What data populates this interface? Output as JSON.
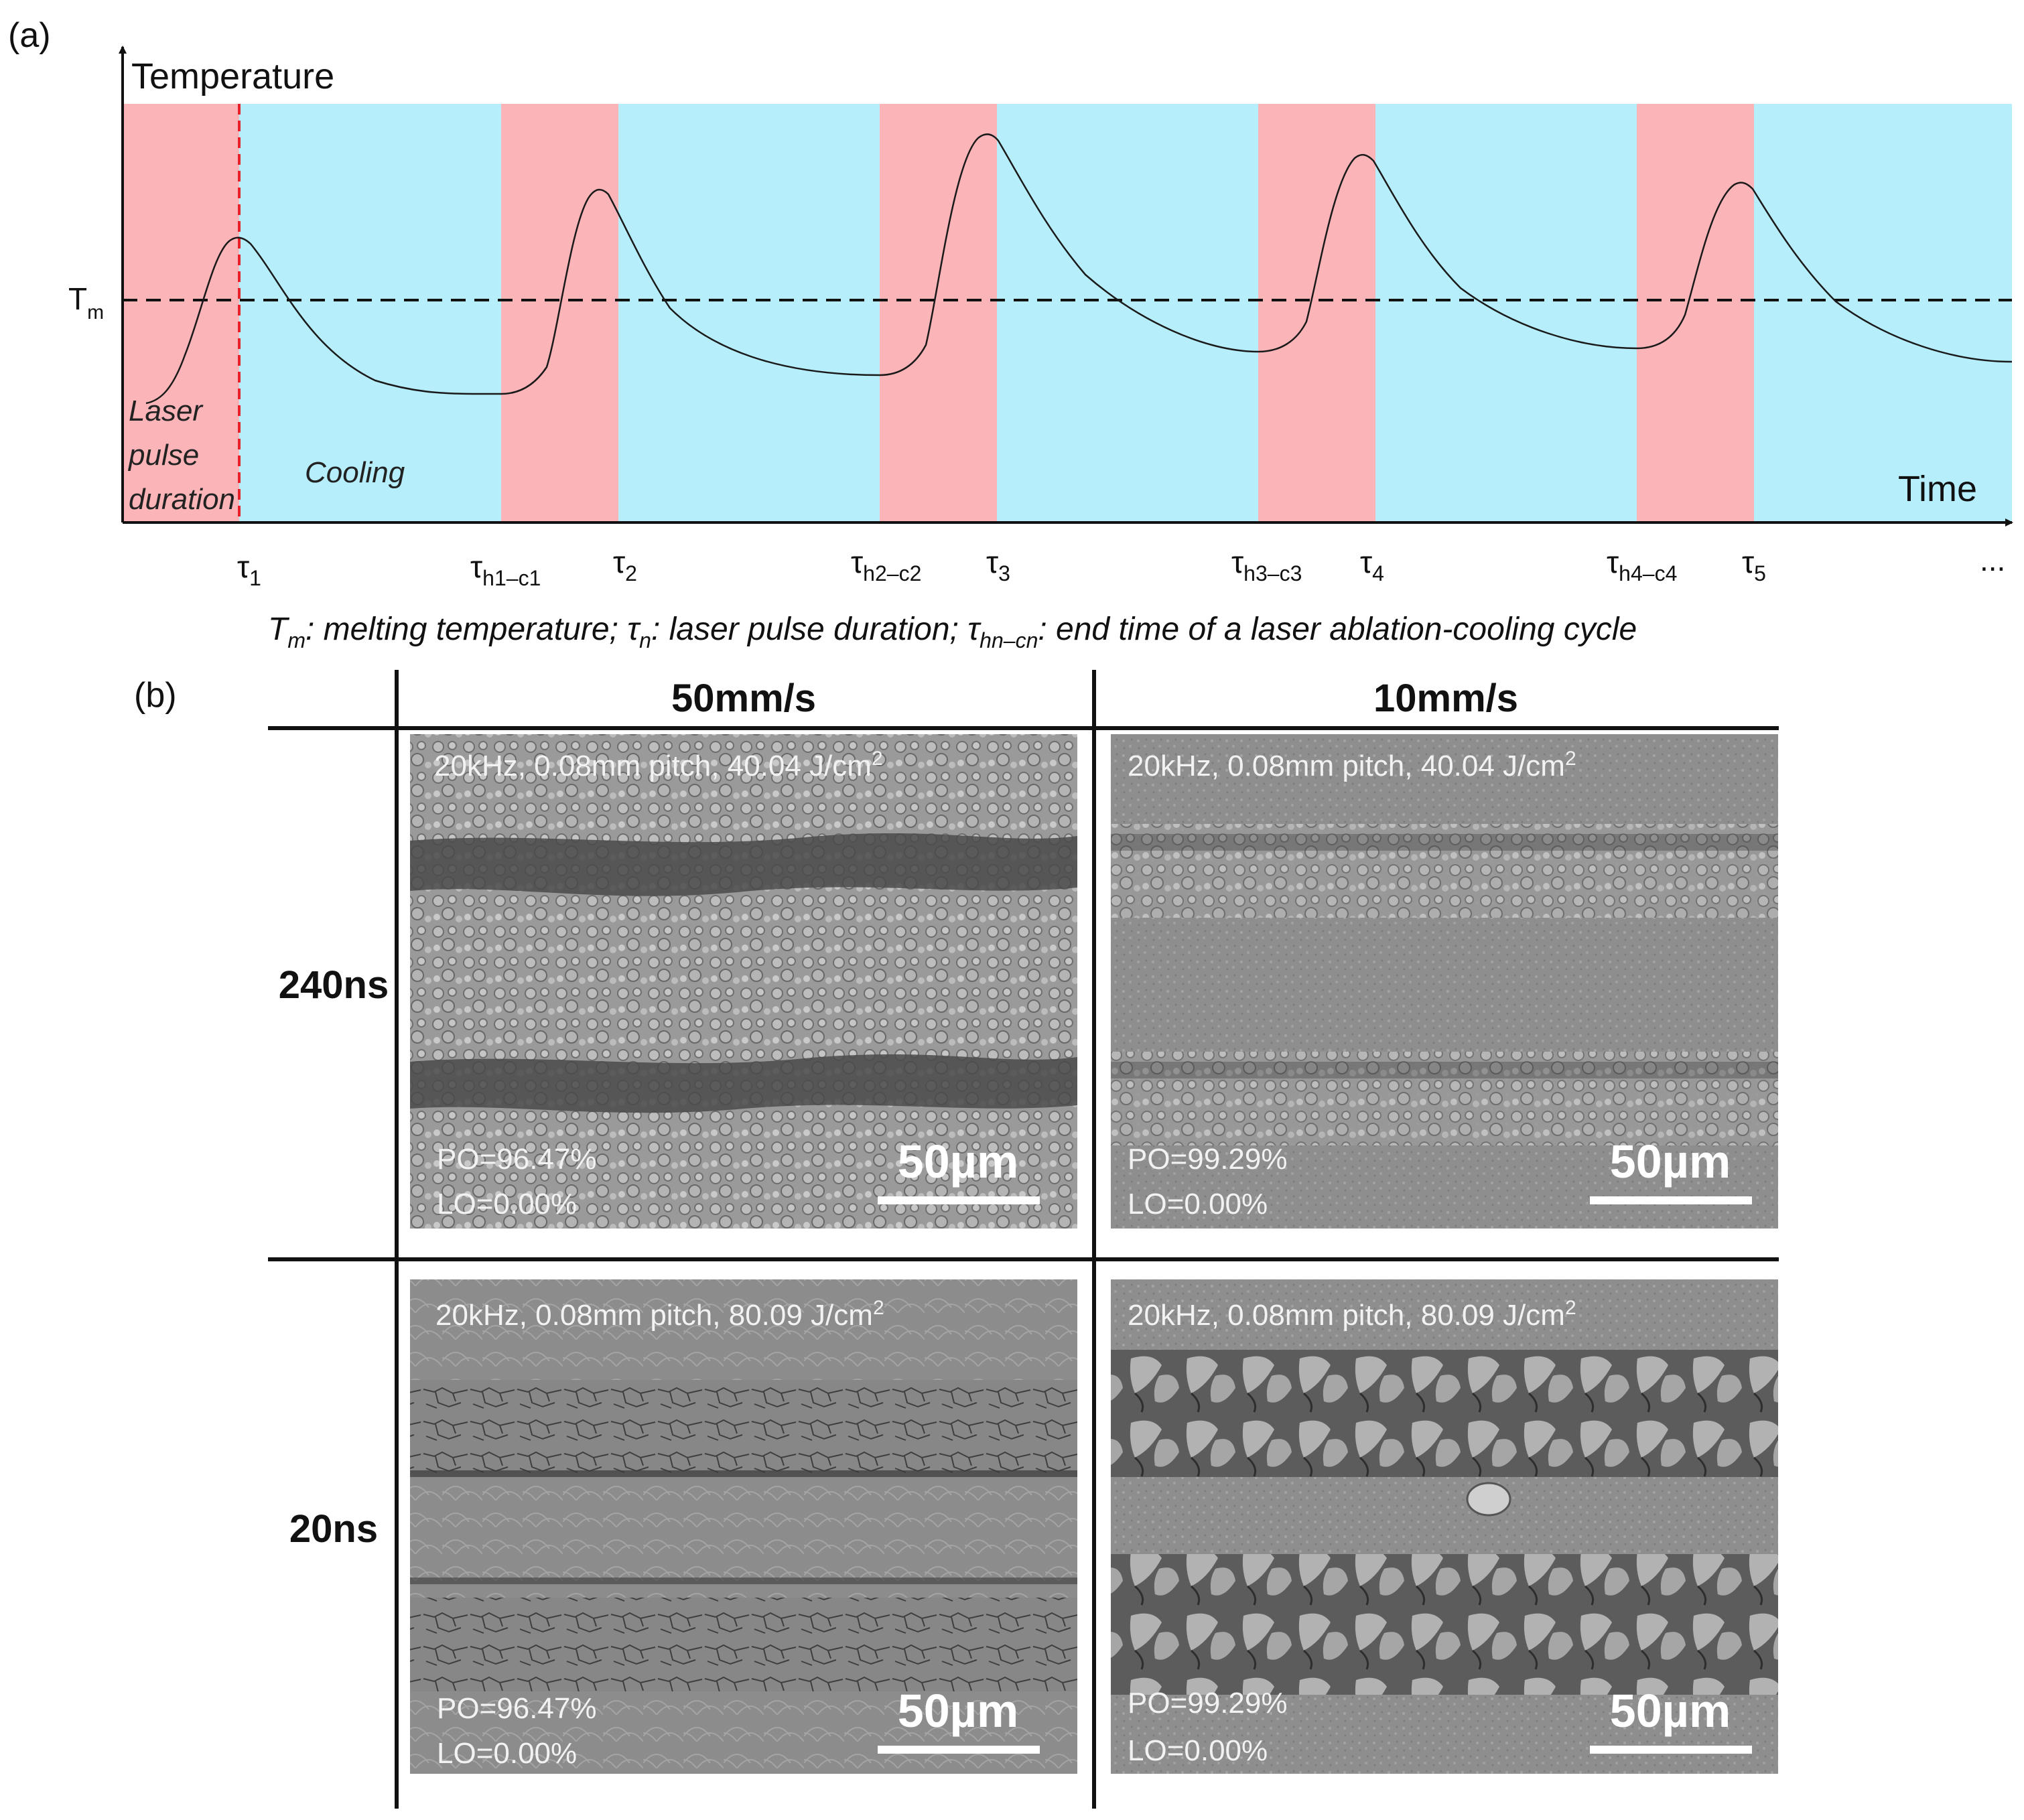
{
  "panel_a": {
    "label": "(a)",
    "y_axis_label": "Temperature",
    "x_axis_label": "Time",
    "tm_label": "T",
    "tm_sub": "m",
    "phase_heating_lines": [
      "Laser",
      "pulse",
      "duration"
    ],
    "phase_cooling": "Cooling",
    "tick_labels": [
      {
        "main": "τ",
        "sub": "1"
      },
      {
        "main": "τ",
        "sub": "h1–c1"
      },
      {
        "main": "τ",
        "sub": "2"
      },
      {
        "main": "τ",
        "sub": "h2–c2"
      },
      {
        "main": "τ",
        "sub": "3"
      },
      {
        "main": "τ",
        "sub": "h3–c3"
      },
      {
        "main": "τ",
        "sub": "4"
      },
      {
        "main": "τ",
        "sub": "h4–c4"
      },
      {
        "main": "τ",
        "sub": "5"
      }
    ],
    "ellipsis": "...",
    "caption": {
      "p1": "T",
      "p1_sub": "m",
      "p2": ": melting temperature; τ",
      "p2_sub": "n",
      "p3": ": laser pulse duration; τ",
      "p3_sub": "hn–cn",
      "p4": ": end time of a laser ablation-cooling cycle"
    },
    "colors": {
      "heating": "#fbb4b8",
      "cooling": "#b6eefb",
      "pulse_marker": "#e8202a",
      "curve": "#1a1a1a"
    }
  },
  "panel_b": {
    "label": "(b)",
    "col_headers": [
      "50mm/s",
      "10mm/s"
    ],
    "row_headers": [
      "240ns",
      "20ns"
    ],
    "images": [
      {
        "cond_a": "20kHz, 0.08mm pitch, 40.04 J/cm",
        "cond_sup": "2",
        "po": "PO=96.47%",
        "lo": "LO=0.00%",
        "scale": "50µm"
      },
      {
        "cond_a": "20kHz, 0.08mm pitch, 40.04 J/cm",
        "cond_sup": "2",
        "po": "PO=99.29%",
        "lo": "LO=0.00%",
        "scale": "50µm"
      },
      {
        "cond_a": "20kHz, 0.08mm pitch, 80.09 J/cm",
        "cond_sup": "2",
        "po": "PO=96.47%",
        "lo": "LO=0.00%",
        "scale": "50µm"
      },
      {
        "cond_a": "20kHz, 0.08mm pitch, 80.09 J/cm",
        "cond_sup": "2",
        "po": "PO=99.29%",
        "lo": "LO=0.00%",
        "scale": "50µm"
      }
    ]
  }
}
